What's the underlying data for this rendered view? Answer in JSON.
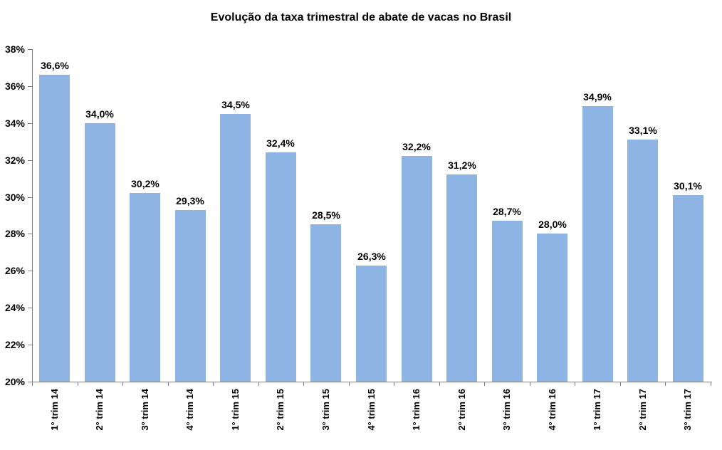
{
  "chart_data": {
    "type": "bar",
    "title": "Evolução da taxa trimestral de abate de vacas no Brasil",
    "categories": [
      "1° trim 14",
      "2° trim 14",
      "3° trim 14",
      "4° trim 14",
      "1° trim 15",
      "2° trim 15",
      "3° trim 15",
      "4° trim 15",
      "1° trim 16",
      "2° trim 16",
      "3° trim 16",
      "4° trim 16",
      "1° trim 17",
      "2° trim 17",
      "3° trim 17"
    ],
    "values": [
      36.6,
      34.0,
      30.2,
      29.3,
      34.5,
      32.4,
      28.5,
      26.3,
      32.2,
      31.2,
      28.7,
      28.0,
      34.9,
      33.1,
      30.1
    ],
    "data_labels": [
      "36,6%",
      "34,0%",
      "30,2%",
      "29,3%",
      "34,5%",
      "32,4%",
      "28,5%",
      "26,3%",
      "32,2%",
      "31,2%",
      "28,7%",
      "28,0%",
      "34,9%",
      "33,1%",
      "30,1%"
    ],
    "xlabel": "",
    "ylabel": "",
    "ylim": [
      20,
      38
    ],
    "y_tick_step": 2,
    "y_tick_labels": [
      "20%",
      "22%",
      "24%",
      "26%",
      "28%",
      "30%",
      "32%",
      "34%",
      "36%",
      "38%"
    ],
    "grid": false,
    "legend": "none",
    "bar_color": "#8DB4E2",
    "axis_color": "#808080",
    "text_color": "#000000",
    "background_color": "#FFFFFF"
  }
}
